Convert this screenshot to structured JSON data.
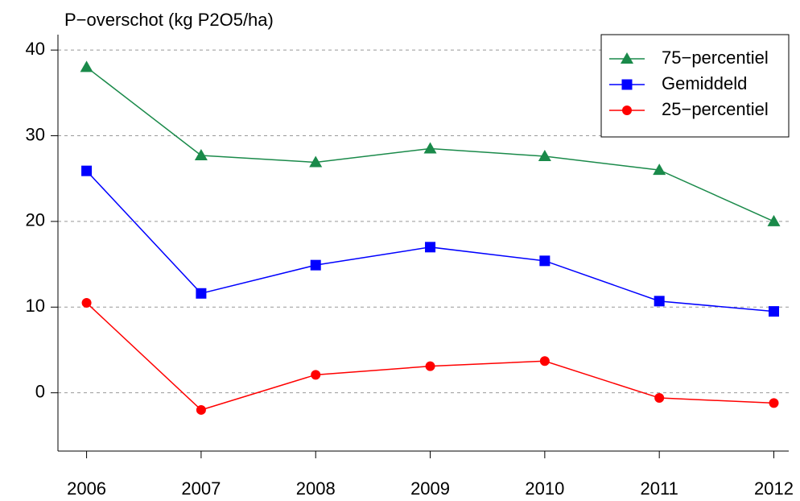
{
  "chart_data": {
    "type": "line",
    "title": "P−overschot (kg P2O5/ha)",
    "x": [
      2006,
      2007,
      2008,
      2009,
      2010,
      2011,
      2012
    ],
    "xlim": [
      2005.75,
      2012.13
    ],
    "xticks": [
      2006,
      2007,
      2008,
      2009,
      2010,
      2011,
      2012
    ],
    "ylim": [
      -6.8,
      41.8
    ],
    "yticks": [
      0,
      10,
      20,
      30,
      40
    ],
    "grid": true,
    "legend": "top-right",
    "series": [
      {
        "name": "75−percentiel",
        "color": "#1a8a4a",
        "marker": "triangle",
        "values": [
          38.0,
          27.7,
          26.9,
          28.5,
          27.6,
          26.0,
          20.0
        ]
      },
      {
        "name": "Gemiddeld",
        "color": "#0000ff",
        "marker": "square",
        "values": [
          25.9,
          11.6,
          14.9,
          17.0,
          15.4,
          10.7,
          9.5
        ]
      },
      {
        "name": "25−percentiel",
        "color": "#ff0000",
        "marker": "circle",
        "values": [
          10.5,
          -2.0,
          2.1,
          3.1,
          3.7,
          -0.6,
          -1.2
        ]
      }
    ]
  }
}
